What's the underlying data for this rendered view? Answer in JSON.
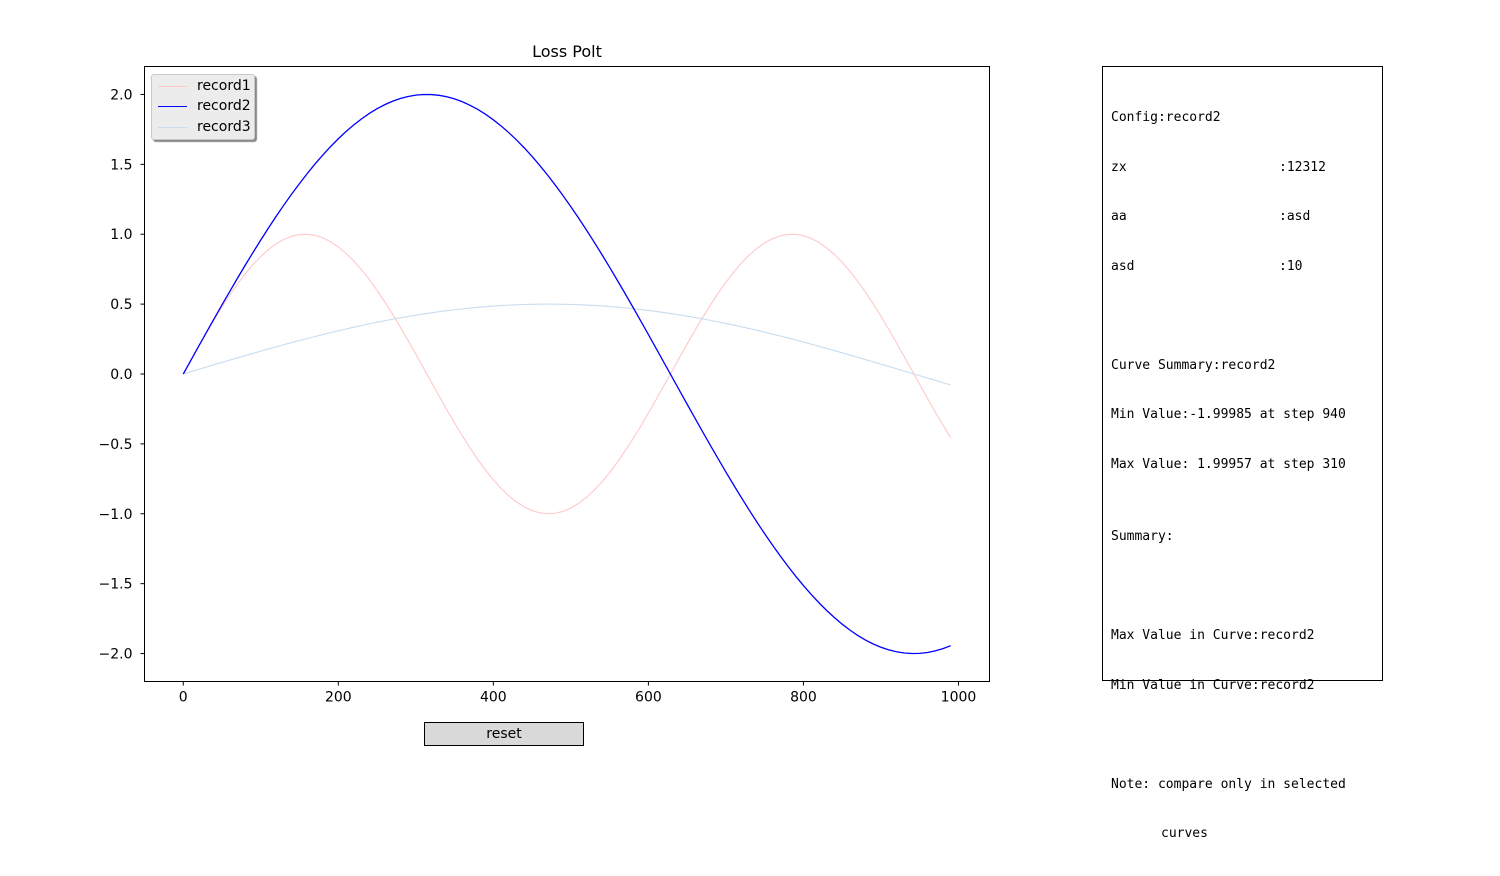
{
  "chart_data": {
    "type": "line",
    "title": "Loss Polt",
    "xlabel": "",
    "ylabel": "",
    "xlim": [
      -50,
      1040
    ],
    "ylim": [
      -2.2,
      2.2
    ],
    "xticks": [
      0,
      200,
      400,
      600,
      800,
      1000
    ],
    "xtick_labels": [
      "0",
      "200",
      "400",
      "600",
      "800",
      "1000"
    ],
    "yticks": [
      2.0,
      1.5,
      1.0,
      0.5,
      0.0,
      -0.5,
      -1.0,
      -1.5,
      -2.0
    ],
    "ytick_labels": [
      "2.0",
      "1.5",
      "1.0",
      "0.5",
      "0.0",
      "−0.5",
      "−1.0",
      "−1.5",
      "−2.0"
    ],
    "legend_position": "top-left",
    "grid": false,
    "x_step": 10,
    "x_max": 990,
    "series": [
      {
        "name": "record1",
        "color": "#ffc8c8",
        "amplitude": 1.0,
        "period": 628.3185,
        "highlighted": false
      },
      {
        "name": "record2",
        "color": "#0000ff",
        "amplitude": 2.0,
        "period": 1256.637,
        "highlighted": true
      },
      {
        "name": "record3",
        "color": "#c8dcf0",
        "amplitude": 0.5,
        "period": 1884.956,
        "highlighted": false
      }
    ]
  },
  "config": {
    "title": "Config:record2",
    "rows": [
      {
        "key": "zx",
        "value": ":12312"
      },
      {
        "key": "aa",
        "value": ":asd"
      },
      {
        "key": "asd",
        "value": ":10"
      }
    ]
  },
  "curve_summary": {
    "title": "Curve Summary:record2",
    "min_line": "Min Value:-1.99985 at step 940",
    "max_line": "Max Value: 1.99957 at step 310"
  },
  "summary": {
    "title": "Summary:",
    "max_line": "Max Value in Curve:record2",
    "min_line": "Min Value in Curve:record2",
    "note_line1": "Note: compare only in selected",
    "note_line2": "curves"
  },
  "controls": {
    "reset_label": "reset"
  }
}
